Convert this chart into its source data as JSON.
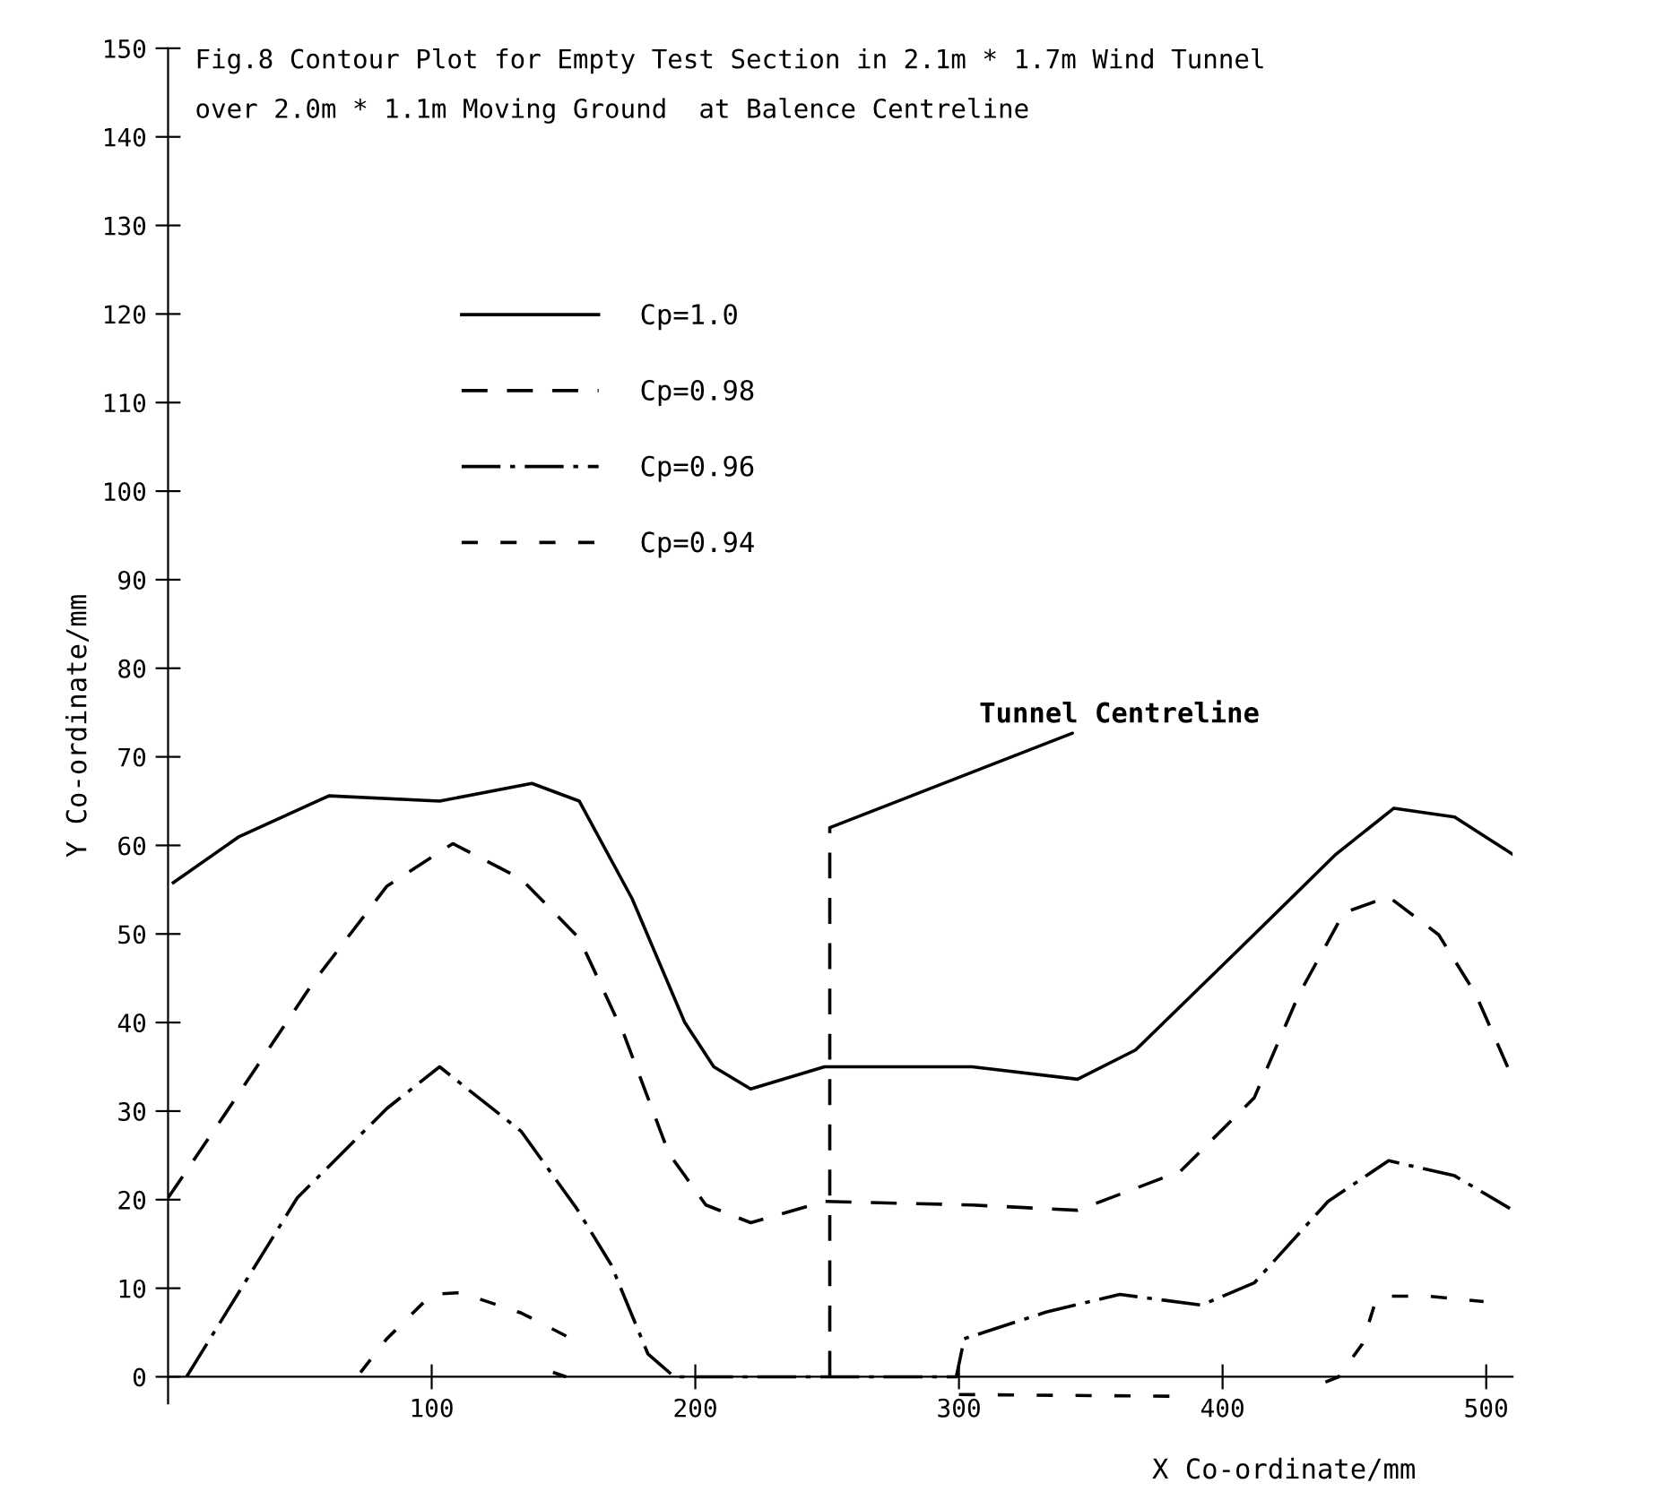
{
  "chart_data": {
    "type": "line",
    "title": "Fig.8 Contour Plot for Empty Test Section in 2.1m * 1.7m Wind Tunnel\nover 2.0m * 1.1m Moving Ground  at Balence Centreline",
    "xlabel": "X Co-ordinate/mm",
    "ylabel": "Y Co-ordinate/mm",
    "xlim": [
      0,
      510
    ],
    "ylim": [
      -3,
      150
    ],
    "xticks": [
      100,
      200,
      300,
      400,
      500
    ],
    "yticks": [
      0,
      10,
      20,
      30,
      40,
      50,
      60,
      70,
      80,
      90,
      100,
      110,
      120,
      130,
      140,
      150
    ],
    "grid": false,
    "legend": "top left",
    "marker": "none",
    "series": [
      {
        "name": "Cp=1.0",
        "color": "#000000",
        "line_style": "solid",
        "x": [
          2,
          27,
          61,
          103,
          138,
          156,
          176,
          196,
          207,
          221,
          249,
          305,
          345,
          367,
          406,
          443,
          465,
          488,
          510
        ],
        "values": [
          55.8,
          61,
          65.6,
          65,
          67,
          65,
          54,
          40,
          35,
          32.5,
          35,
          35,
          33.6,
          36.9,
          48.2,
          59,
          64.2,
          63.2,
          59
        ]
      },
      {
        "name": "Cp=0.98",
        "color": "#000000",
        "line_style": "dashed",
        "x": [
          0,
          21,
          55,
          83,
          108,
          134,
          156,
          173,
          190,
          204,
          221,
          249,
          305,
          345,
          384,
          412,
          429,
          446,
          463,
          482,
          496,
          509
        ],
        "values": [
          20.2,
          29.4,
          44.5,
          55.4,
          60.2,
          56.2,
          49.5,
          38.6,
          25.2,
          19.4,
          17.4,
          19.8,
          19.4,
          18.8,
          23.2,
          31.5,
          43.2,
          52.4,
          54.2,
          49.9,
          43.2,
          34.4
        ]
      },
      {
        "name": "Cp=0.96",
        "color": "#000000",
        "line_style": "dashdot",
        "x": [
          7,
          49,
          83,
          103,
          134,
          155,
          168,
          182,
          192,
          250,
          299,
          302,
          333,
          361,
          392,
          412,
          440,
          463,
          488,
          509
        ],
        "values": [
          0,
          20.2,
          30.3,
          35,
          27.7,
          19,
          12.7,
          2.6,
          0,
          0,
          0,
          4.3,
          7.3,
          9.3,
          8.1,
          10.6,
          19.8,
          24.4,
          22.7,
          19
        ]
      },
      {
        "name": "Cp=0.94",
        "color": "#000000",
        "line_style": "short dashed",
        "x": [
          73,
          83,
          100,
          111,
          134,
          153,
          null,
          146,
          151,
          null,
          300,
          383,
          null,
          439,
          444,
          453,
          458,
          464,
          478,
          499
        ],
        "values": [
          0.5,
          4.3,
          9.3,
          9.5,
          7.2,
          4.3,
          null,
          0.5,
          0,
          null,
          -2,
          -2.2,
          null,
          -0.6,
          0,
          3.7,
          8.5,
          9.1,
          9.1,
          8.5
        ]
      },
      {
        "color": "#000000",
        "line_style": "dashed",
        "x": [
          251,
          251
        ],
        "values": [
          0,
          62
        ]
      }
    ],
    "annotations": [
      {
        "text": "Tunnel Centreline",
        "x": 251,
        "y": 62
      }
    ]
  }
}
